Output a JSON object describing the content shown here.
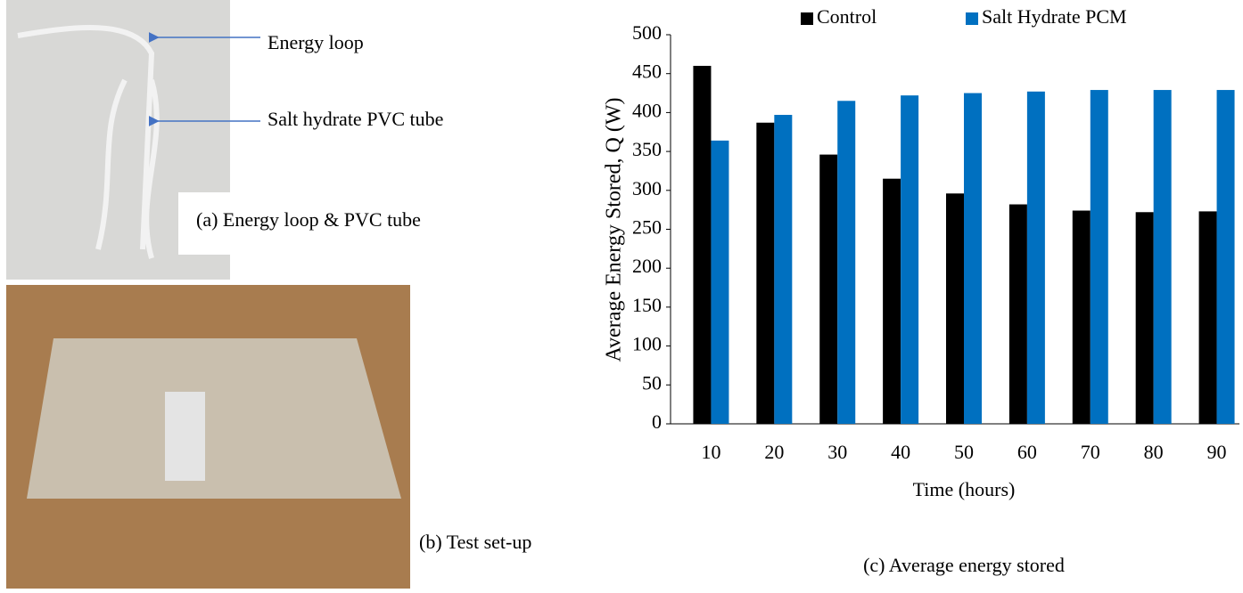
{
  "chart_data": {
    "type": "bar",
    "x_label": "Time (hours)",
    "y_label": "Average Energy Stored, Q (W)",
    "caption": "(c) Average energy stored",
    "categories": [
      "10",
      "20",
      "30",
      "40",
      "50",
      "60",
      "70",
      "80",
      "90"
    ],
    "series": [
      {
        "name": "Control",
        "color": "#000000",
        "values": [
          460,
          387,
          346,
          315,
          296,
          282,
          274,
          272,
          273
        ]
      },
      {
        "name": "Salt Hydrate PCM",
        "color": "#0070c0",
        "values": [
          364,
          397,
          415,
          422,
          425,
          427,
          429,
          429,
          429
        ]
      }
    ],
    "ylim": [
      0,
      500
    ],
    "yticks": [
      0,
      50,
      100,
      150,
      200,
      250,
      300,
      350,
      400,
      450,
      500
    ],
    "grid": false,
    "legend": "top"
  },
  "photos": {
    "top": {
      "labels": [
        "Energy loop",
        "Salt hydrate PVC tube"
      ],
      "caption": "(a) Energy loop & PVC tube"
    },
    "bottom": {
      "caption": "(b) Test set-up"
    }
  }
}
